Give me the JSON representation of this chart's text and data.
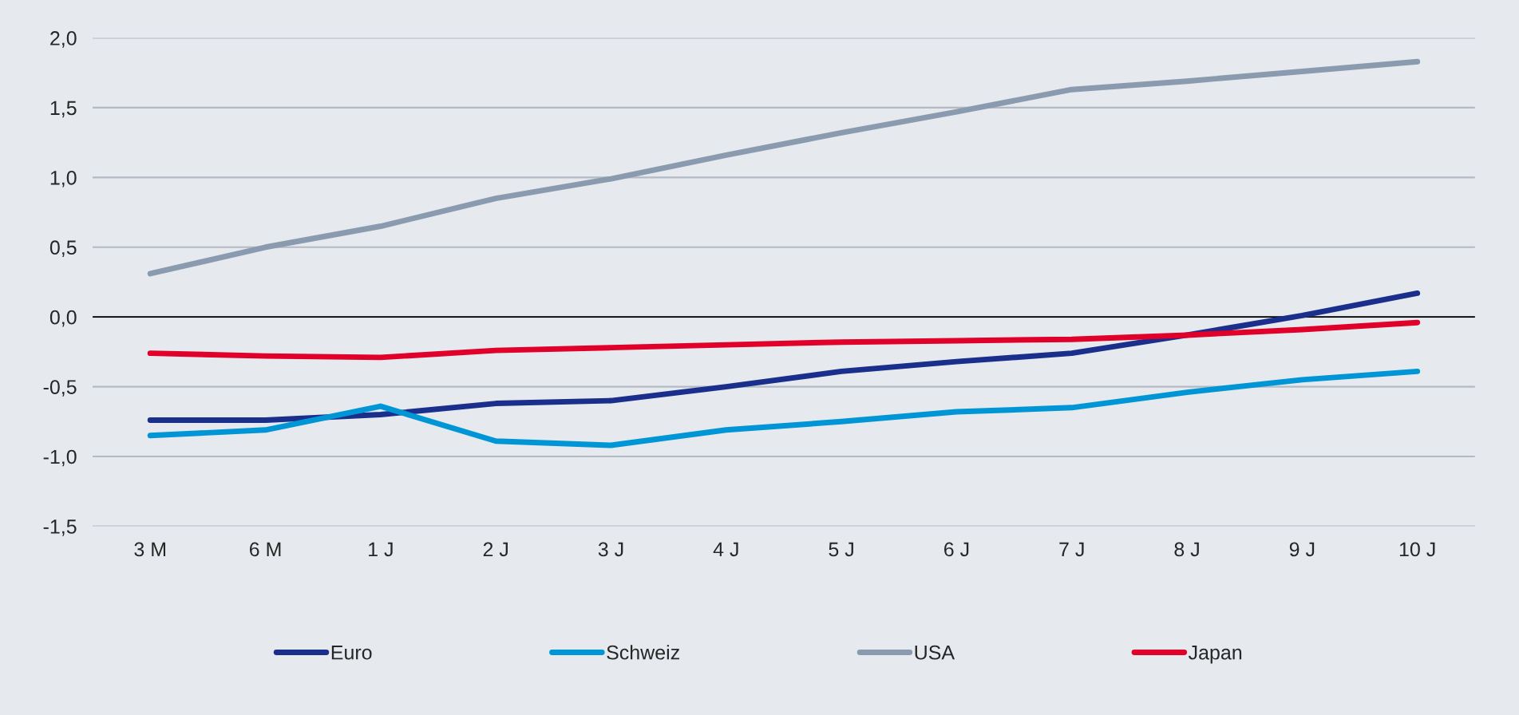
{
  "chart_data": {
    "type": "line",
    "categories": [
      "3 M",
      "6 M",
      "1 J",
      "2 J",
      "3 J",
      "4 J",
      "5 J",
      "6 J",
      "7 J",
      "8 J",
      "9 J",
      "10 J"
    ],
    "series": [
      {
        "name": "Euro",
        "color": "#1a2e8c",
        "values": [
          -0.74,
          -0.74,
          -0.7,
          -0.62,
          -0.6,
          -0.5,
          -0.39,
          -0.32,
          -0.26,
          -0.13,
          0.01,
          0.17
        ]
      },
      {
        "name": "Schweiz",
        "color": "#0096d6",
        "values": [
          -0.85,
          -0.81,
          -0.64,
          -0.89,
          -0.92,
          -0.81,
          -0.75,
          -0.68,
          -0.65,
          -0.54,
          -0.45,
          -0.39
        ]
      },
      {
        "name": "USA",
        "color": "#8a9bb0",
        "values": [
          0.31,
          0.5,
          0.65,
          0.85,
          0.99,
          1.16,
          1.32,
          1.47,
          1.63,
          1.69,
          1.76,
          1.83
        ]
      },
      {
        "name": "Japan",
        "color": "#e0002a",
        "values": [
          -0.26,
          -0.28,
          -0.29,
          -0.24,
          -0.22,
          -0.2,
          -0.18,
          -0.17,
          -0.16,
          -0.13,
          -0.09,
          -0.04
        ]
      }
    ],
    "ylim": [
      -1.5,
      2.0
    ],
    "yticks": [
      {
        "value": -1.5,
        "label": "-1,5"
      },
      {
        "value": -1.0,
        "label": "-1,0"
      },
      {
        "value": -0.5,
        "label": "-0,5"
      },
      {
        "value": 0,
        "label": "0,0"
      },
      {
        "value": 0.5,
        "label": "0,5"
      },
      {
        "value": 1.0,
        "label": "1,0"
      },
      {
        "value": 1.5,
        "label": "1,5"
      },
      {
        "value": 2.0,
        "label": "2,0"
      }
    ],
    "ref_lines": [
      {
        "axis": "y",
        "value": 0,
        "color": "#000000"
      }
    ],
    "grid": "y",
    "legend": "bottom",
    "marker": "none",
    "line_style": "solid"
  }
}
